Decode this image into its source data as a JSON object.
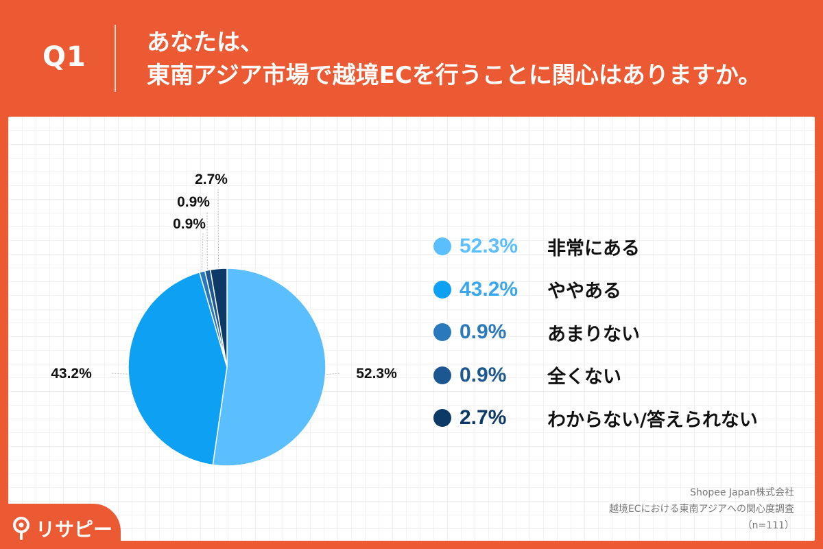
{
  "header": {
    "question_number": "Q1",
    "question_line1": "あなたは、",
    "question_line2": "東南アジア市場で越境ECを行うことに関心はありますか。"
  },
  "chart_data": {
    "type": "pie",
    "categories": [
      "非常にある",
      "ややある",
      "あまりない",
      "全くない",
      "わからない/答えられない"
    ],
    "values": [
      52.3,
      43.2,
      0.9,
      0.9,
      2.7
    ],
    "labels": [
      "52.3%",
      "43.2%",
      "0.9%",
      "0.9%",
      "2.7%"
    ],
    "colors": [
      "#5bbfff",
      "#0ea0f3",
      "#2a79bd",
      "#1d5791",
      "#0c3966"
    ],
    "legend_pct_colors": [
      "#5bbfff",
      "#3aa6ee",
      "#2a79bd",
      "#1d5791",
      "#0c3966"
    ],
    "legend_position": "right"
  },
  "source": {
    "line1": "Shopee Japan株式会社",
    "line2": "越境ECにおける東南アジアへの関心度調査",
    "line3": "（n=111）"
  },
  "brand": {
    "name": "リサピー",
    "color": "#ec5a34"
  }
}
